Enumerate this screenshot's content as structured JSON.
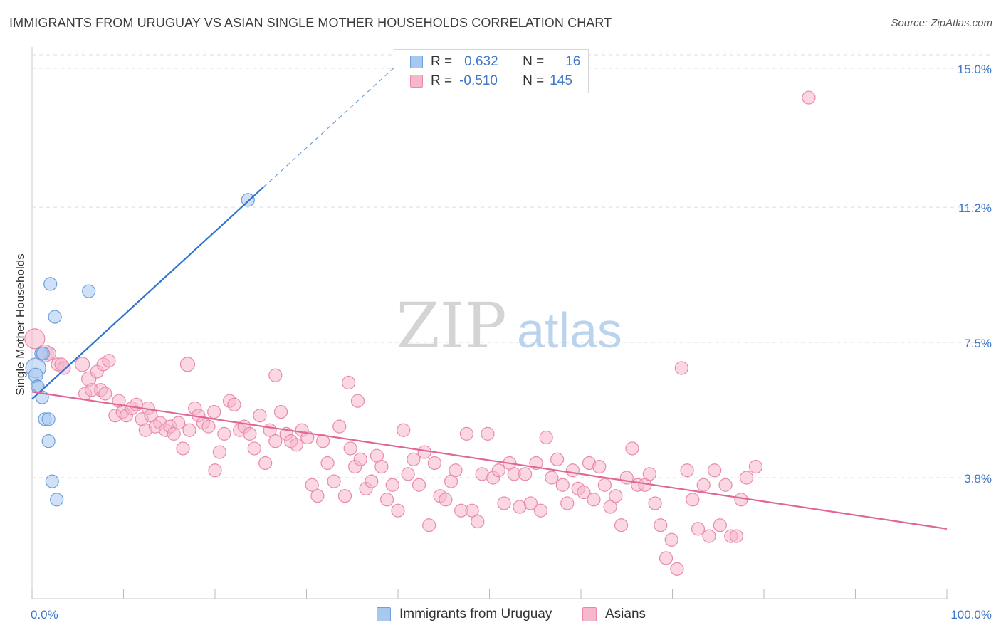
{
  "title": "IMMIGRANTS FROM URUGUAY VS ASIAN SINGLE MOTHER HOUSEHOLDS CORRELATION CHART",
  "source": "Source: ZipAtlas.com",
  "watermark": {
    "zip": "ZIP",
    "atlas": "atlas"
  },
  "legend_box": {
    "rows": [
      {
        "r_label": "R =",
        "r_value": "0.632",
        "n_label": "N =",
        "n_value": "16"
      },
      {
        "r_label": "R =",
        "r_value": "-0.510",
        "n_label": "N =",
        "n_value": "145"
      }
    ]
  },
  "bottom_legend": {
    "series1": "Immigrants from Uruguay",
    "series2": "Asians"
  },
  "colors": {
    "series1_fill": "#a9c8f0",
    "series1_stroke": "#6d9fdc",
    "series1_line": "#2f73d0",
    "series2_fill": "#f6b7cb",
    "series2_stroke": "#e88aaa",
    "series2_line": "#e0669a",
    "tick_label": "#3f78c8",
    "grid": "#dddddd"
  },
  "chart_data": {
    "type": "scatter",
    "title": "IMMIGRANTS FROM URUGUAY VS ASIAN SINGLE MOTHER HOUSEHOLDS CORRELATION CHART",
    "xlabel": "",
    "ylabel": "Single Mother Households",
    "xlim": [
      0,
      100
    ],
    "ylim": [
      0,
      15.4
    ],
    "x_tick_labels": [
      "0.0%",
      "100.0%"
    ],
    "y_ticks": [
      3.8,
      7.5,
      11.2,
      15.0
    ],
    "y_tick_labels": [
      "3.8%",
      "7.5%",
      "11.2%",
      "15.0%"
    ],
    "grid": "horizontal dashed",
    "legend_placement": "top-center",
    "series": [
      {
        "name": "Immigrants from Uruguay",
        "r": 0.632,
        "n": 16,
        "trend": {
          "x0": 0,
          "y0": 5.95,
          "x1": 25.3,
          "y1": 11.75,
          "dashed_to": {
            "x": 39.5,
            "y": 15.0
          }
        },
        "points": [
          [
            0.4,
            6.8,
            14
          ],
          [
            0.4,
            6.6,
            10
          ],
          [
            0.6,
            6.3,
            9
          ],
          [
            1.0,
            7.2,
            9
          ],
          [
            1.1,
            6.0,
            9
          ],
          [
            1.4,
            5.4,
            9
          ],
          [
            1.8,
            5.4,
            9
          ],
          [
            1.8,
            4.8,
            9
          ],
          [
            2.0,
            9.1,
            9
          ],
          [
            2.2,
            3.7,
            9
          ],
          [
            2.5,
            8.2,
            9
          ],
          [
            2.7,
            3.2,
            9
          ],
          [
            6.2,
            8.9,
            9
          ],
          [
            23.6,
            11.4,
            9
          ],
          [
            1.2,
            7.2,
            9
          ],
          [
            0.7,
            6.3,
            8
          ]
        ]
      },
      {
        "name": "Asians",
        "r": -0.51,
        "n": 145,
        "trend": {
          "x0": 0,
          "y0": 6.15,
          "x1": 100,
          "y1": 2.4
        },
        "points": [
          [
            0.3,
            7.6,
            14
          ],
          [
            1.4,
            7.2,
            12
          ],
          [
            1.9,
            7.2,
            9
          ],
          [
            2.8,
            6.9,
            9
          ],
          [
            3.2,
            6.9,
            9
          ],
          [
            3.5,
            6.8,
            9
          ],
          [
            5.5,
            6.9,
            10
          ],
          [
            6.2,
            6.5,
            10
          ],
          [
            5.8,
            6.1,
            9
          ],
          [
            7.1,
            6.7,
            9
          ],
          [
            7.5,
            6.2,
            9
          ],
          [
            6.5,
            6.2,
            9
          ],
          [
            8.0,
            6.1,
            9
          ],
          [
            7.8,
            6.9,
            9
          ],
          [
            8.4,
            7.0,
            9
          ],
          [
            9.1,
            5.5,
            9
          ],
          [
            9.5,
            5.9,
            9
          ],
          [
            9.9,
            5.6,
            9
          ],
          [
            10.3,
            5.5,
            9
          ],
          [
            10.9,
            5.7,
            9
          ],
          [
            11.4,
            5.8,
            9
          ],
          [
            12.0,
            5.4,
            9
          ],
          [
            12.4,
            5.1,
            9
          ],
          [
            12.7,
            5.7,
            9
          ],
          [
            13.0,
            5.5,
            9
          ],
          [
            13.5,
            5.2,
            9
          ],
          [
            14.0,
            5.3,
            9
          ],
          [
            14.6,
            5.1,
            9
          ],
          [
            15.1,
            5.2,
            9
          ],
          [
            15.5,
            5.0,
            9
          ],
          [
            16.0,
            5.3,
            9
          ],
          [
            16.5,
            4.6,
            9
          ],
          [
            17.2,
            5.1,
            9
          ],
          [
            17.8,
            5.7,
            9
          ],
          [
            18.2,
            5.5,
            9
          ],
          [
            18.7,
            5.3,
            9
          ],
          [
            19.3,
            5.2,
            9
          ],
          [
            19.9,
            5.6,
            9
          ],
          [
            20.5,
            4.5,
            9
          ],
          [
            21.0,
            5.0,
            9
          ],
          [
            21.6,
            5.9,
            9
          ],
          [
            22.1,
            5.8,
            9
          ],
          [
            22.7,
            5.1,
            9
          ],
          [
            23.2,
            5.2,
            9
          ],
          [
            23.8,
            5.0,
            9
          ],
          [
            24.3,
            4.6,
            9
          ],
          [
            24.9,
            5.5,
            9
          ],
          [
            25.5,
            4.2,
            9
          ],
          [
            26.0,
            5.1,
            9
          ],
          [
            26.6,
            4.8,
            9
          ],
          [
            27.2,
            5.6,
            9
          ],
          [
            27.8,
            5.0,
            9
          ],
          [
            28.3,
            4.8,
            9
          ],
          [
            28.9,
            4.7,
            9
          ],
          [
            29.5,
            5.1,
            9
          ],
          [
            30.1,
            4.9,
            9
          ],
          [
            30.6,
            3.6,
            9
          ],
          [
            31.2,
            3.3,
            9
          ],
          [
            31.8,
            4.8,
            9
          ],
          [
            32.3,
            4.2,
            9
          ],
          [
            33.0,
            3.7,
            9
          ],
          [
            33.6,
            5.2,
            9
          ],
          [
            34.2,
            3.3,
            9
          ],
          [
            34.8,
            4.6,
            9
          ],
          [
            35.3,
            4.1,
            9
          ],
          [
            35.9,
            4.3,
            9
          ],
          [
            36.5,
            3.5,
            9
          ],
          [
            37.1,
            3.7,
            9
          ],
          [
            37.7,
            4.4,
            9
          ],
          [
            38.2,
            4.1,
            9
          ],
          [
            38.8,
            3.2,
            9
          ],
          [
            39.4,
            3.6,
            9
          ],
          [
            40.0,
            2.9,
            9
          ],
          [
            40.6,
            5.1,
            9
          ],
          [
            41.1,
            3.9,
            9
          ],
          [
            41.7,
            4.3,
            9
          ],
          [
            42.3,
            3.6,
            9
          ],
          [
            42.9,
            4.5,
            9
          ],
          [
            43.4,
            2.5,
            9
          ],
          [
            44.0,
            4.2,
            9
          ],
          [
            44.6,
            3.3,
            9
          ],
          [
            45.2,
            3.2,
            9
          ],
          [
            45.8,
            3.7,
            9
          ],
          [
            46.3,
            4.0,
            9
          ],
          [
            46.9,
            2.9,
            9
          ],
          [
            47.5,
            5.0,
            9
          ],
          [
            48.1,
            2.9,
            9
          ],
          [
            48.7,
            2.6,
            9
          ],
          [
            49.2,
            3.9,
            9
          ],
          [
            49.8,
            5.0,
            9
          ],
          [
            50.4,
            3.8,
            9
          ],
          [
            51.0,
            4.0,
            9
          ],
          [
            51.6,
            3.1,
            9
          ],
          [
            52.2,
            4.2,
            9
          ],
          [
            52.7,
            3.9,
            9
          ],
          [
            53.3,
            3.0,
            9
          ],
          [
            53.9,
            3.9,
            9
          ],
          [
            54.5,
            3.1,
            9
          ],
          [
            55.1,
            4.2,
            9
          ],
          [
            55.6,
            2.9,
            9
          ],
          [
            56.2,
            4.9,
            9
          ],
          [
            56.8,
            3.8,
            9
          ],
          [
            57.4,
            4.3,
            9
          ],
          [
            58.0,
            3.6,
            9
          ],
          [
            58.5,
            3.1,
            9
          ],
          [
            59.1,
            4.0,
            9
          ],
          [
            59.7,
            3.5,
            9
          ],
          [
            60.3,
            3.4,
            9
          ],
          [
            60.9,
            4.2,
            9
          ],
          [
            61.4,
            3.2,
            9
          ],
          [
            62.0,
            4.1,
            9
          ],
          [
            62.6,
            3.6,
            9
          ],
          [
            63.2,
            3.0,
            9
          ],
          [
            63.8,
            3.3,
            9
          ],
          [
            64.4,
            2.5,
            9
          ],
          [
            65.0,
            3.8,
            9
          ],
          [
            65.6,
            4.6,
            9
          ],
          [
            66.2,
            3.6,
            9
          ],
          [
            67.0,
            3.6,
            9
          ],
          [
            67.5,
            3.9,
            9
          ],
          [
            68.1,
            3.1,
            9
          ],
          [
            68.7,
            2.5,
            9
          ],
          [
            69.3,
            1.6,
            9
          ],
          [
            69.9,
            2.1,
            9
          ],
          [
            70.5,
            1.3,
            9
          ],
          [
            71.0,
            6.8,
            9
          ],
          [
            71.6,
            4.0,
            9
          ],
          [
            72.2,
            3.2,
            9
          ],
          [
            72.8,
            2.4,
            9
          ],
          [
            73.4,
            3.6,
            9
          ],
          [
            74.0,
            2.2,
            9
          ],
          [
            74.6,
            4.0,
            9
          ],
          [
            75.2,
            2.5,
            9
          ],
          [
            75.8,
            3.6,
            9
          ],
          [
            76.4,
            2.2,
            9
          ],
          [
            77.0,
            2.2,
            9
          ],
          [
            77.5,
            3.2,
            9
          ],
          [
            78.1,
            3.8,
            9
          ],
          [
            79.1,
            4.1,
            9
          ],
          [
            84.9,
            14.2,
            9
          ],
          [
            17.0,
            6.9,
            10
          ],
          [
            20.0,
            4.0,
            9
          ],
          [
            26.6,
            6.6,
            9
          ],
          [
            34.6,
            6.4,
            9
          ],
          [
            35.6,
            5.9,
            9
          ]
        ]
      }
    ]
  }
}
